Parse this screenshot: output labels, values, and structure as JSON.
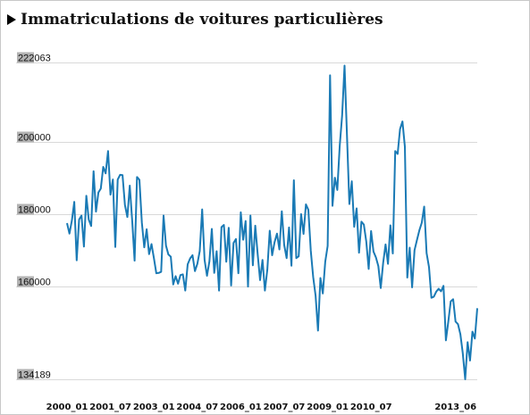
{
  "title": "Immatriculations de voitures particulières",
  "colors": {
    "line": "#1a7ab5",
    "grid": "#d9d9d9",
    "label_bg": "#b3b3b3"
  },
  "chart_data": {
    "type": "line",
    "title": "Immatriculations de voitures particulières",
    "xlabel": "",
    "ylabel": "",
    "ylim": [
      134189,
      222063
    ],
    "y_ticks": [
      "222063",
      "200000",
      "180000",
      "160000",
      "134189"
    ],
    "y_tick_values": [
      222063,
      200000,
      180000,
      160000,
      134189
    ],
    "x_ticks": [
      "2000_01",
      "2001_07",
      "2003_01",
      "2004_07",
      "2006_01",
      "2007_07",
      "2009_01",
      "2010_07",
      "2013_06"
    ],
    "x_tick_index": [
      0,
      18,
      36,
      54,
      72,
      90,
      108,
      126,
      161
    ],
    "grid": true,
    "series": [
      {
        "values": [
          177500,
          174600,
          178200,
          183400,
          167200,
          178500,
          179600,
          171000,
          185100,
          178500,
          176700,
          191900,
          180700,
          186000,
          187100,
          193100,
          191300,
          197500,
          185400,
          189600,
          170900,
          189600,
          190900,
          190800,
          182500,
          179200,
          187900,
          178200,
          167100,
          190300,
          189500,
          177700,
          170800,
          175800,
          168900,
          171700,
          167800,
          163600,
          163700,
          164000,
          179600,
          171300,
          168800,
          168200,
          160500,
          162800,
          160700,
          163100,
          163300,
          158800,
          166100,
          167700,
          168600,
          164200,
          166200,
          169800,
          181300,
          167300,
          162900,
          166900,
          175900,
          163700,
          169700,
          158800,
          176400,
          177000,
          166800,
          176200,
          160200,
          172000,
          173100,
          163600,
          180500,
          172900,
          178100,
          159900,
          179600,
          165800,
          176800,
          168900,
          161700,
          167300,
          158800,
          164600,
          175400,
          168600,
          172200,
          174600,
          170200,
          180800,
          171400,
          167800,
          176300,
          165700,
          189400,
          167800,
          168300,
          180000,
          174500,
          182700,
          181200,
          169900,
          162600,
          157400,
          147700,
          162300,
          158000,
          166800,
          171200,
          218500,
          182300,
          190100,
          186700,
          198900,
          207400,
          221200,
          202000,
          182800,
          189100,
          176500,
          181600,
          169300,
          177900,
          177100,
          172400,
          164800,
          175300,
          169600,
          168000,
          165600,
          159500,
          166500,
          171600,
          166200,
          176900,
          169100,
          197500,
          196700,
          203600,
          205700,
          198700,
          162400,
          170700,
          159700,
          170000,
          172800,
          175500,
          177600,
          182100,
          169200,
          165300,
          156800,
          157100,
          158500,
          159300,
          158600,
          160100,
          145000,
          150200,
          155800,
          156400,
          150200,
          149500,
          146700,
          141400,
          134200,
          144500,
          139400,
          147400,
          145500,
          153900
        ]
      }
    ]
  }
}
